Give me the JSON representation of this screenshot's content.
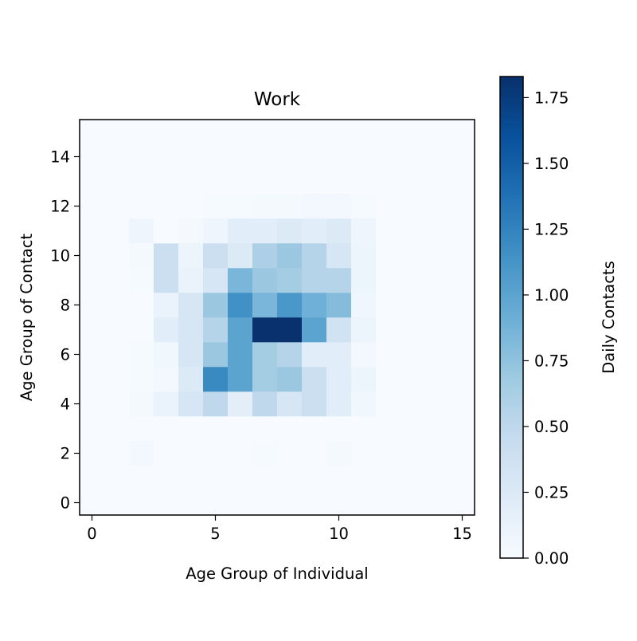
{
  "chart_data": {
    "type": "heatmap",
    "title": "Work",
    "xlabel": "Age Group of Individual",
    "ylabel": "Age Group of Contact",
    "x_ticks": [
      0,
      5,
      10,
      15
    ],
    "y_ticks": [
      0,
      2,
      4,
      6,
      8,
      10,
      12,
      14
    ],
    "xlim": [
      -0.5,
      15.5
    ],
    "ylim": [
      -0.5,
      15.5
    ],
    "colorbar": {
      "label": "Daily Contacts",
      "min": 0,
      "max": 1.83,
      "ticks": [
        0.0,
        0.25,
        0.5,
        0.75,
        1.0,
        1.25,
        1.5,
        1.75
      ],
      "tick_labels": [
        "0.00",
        "0.25",
        "0.50",
        "0.75",
        "1.00",
        "1.25",
        "1.50",
        "1.75"
      ]
    },
    "colormap": [
      "#f7fbff",
      "#deebf7",
      "#c6dbef",
      "#9ecae1",
      "#6baed6",
      "#4292c6",
      "#2171b5",
      "#08519c",
      "#08306b"
    ],
    "matrix": [
      [
        0,
        0,
        0,
        0,
        0,
        0,
        0,
        0,
        0,
        0,
        0,
        0,
        0,
        0,
        0,
        0
      ],
      [
        0,
        0,
        0,
        0,
        0,
        0,
        0,
        0,
        0,
        0,
        0,
        0,
        0,
        0,
        0,
        0
      ],
      [
        0,
        0,
        0.04,
        0,
        0,
        0,
        0,
        0.02,
        0,
        0,
        0.03,
        0,
        0,
        0,
        0,
        0
      ],
      [
        0,
        0,
        0,
        0,
        0,
        0,
        0,
        0,
        0,
        0,
        0,
        0,
        0,
        0,
        0,
        0
      ],
      [
        0,
        0,
        0.03,
        0.12,
        0.3,
        0.5,
        0.18,
        0.5,
        0.3,
        0.4,
        0.2,
        0.06,
        0,
        0,
        0,
        0
      ],
      [
        0,
        0,
        0.02,
        0.04,
        0.25,
        1.2,
        1.0,
        0.65,
        0.7,
        0.4,
        0.2,
        0.1,
        0,
        0,
        0,
        0
      ],
      [
        0,
        0,
        0.02,
        0.06,
        0.3,
        0.7,
        1.0,
        0.65,
        0.55,
        0.2,
        0.2,
        0.05,
        0,
        0,
        0,
        0
      ],
      [
        0,
        0,
        0,
        0.2,
        0.3,
        0.55,
        1.0,
        1.82,
        1.82,
        1.0,
        0.35,
        0.1,
        0,
        0,
        0,
        0
      ],
      [
        0,
        0,
        0,
        0.12,
        0.3,
        0.7,
        1.15,
        0.85,
        1.1,
        0.9,
        0.8,
        0.07,
        0,
        0,
        0,
        0
      ],
      [
        0,
        0,
        0.02,
        0.4,
        0.12,
        0.3,
        0.85,
        0.7,
        0.65,
        0.55,
        0.55,
        0.1,
        0,
        0,
        0,
        0
      ],
      [
        0,
        0,
        0.03,
        0.4,
        0.1,
        0.4,
        0.25,
        0.6,
        0.7,
        0.55,
        0.3,
        0.1,
        0,
        0,
        0,
        0
      ],
      [
        0,
        0,
        0.08,
        0,
        0.03,
        0.08,
        0.2,
        0.2,
        0.25,
        0.2,
        0.25,
        0.08,
        0,
        0,
        0,
        0
      ],
      [
        0,
        0,
        0,
        0,
        0,
        0.02,
        0.02,
        0.03,
        0.03,
        0.05,
        0.04,
        0.02,
        0,
        0,
        0,
        0
      ],
      [
        0,
        0,
        0,
        0,
        0,
        0,
        0,
        0,
        0,
        0,
        0,
        0,
        0,
        0,
        0,
        0
      ],
      [
        0,
        0,
        0,
        0,
        0,
        0,
        0,
        0,
        0,
        0,
        0,
        0,
        0,
        0,
        0,
        0
      ],
      [
        0,
        0,
        0,
        0,
        0,
        0,
        0,
        0,
        0,
        0,
        0,
        0,
        0,
        0,
        0,
        0
      ]
    ]
  }
}
